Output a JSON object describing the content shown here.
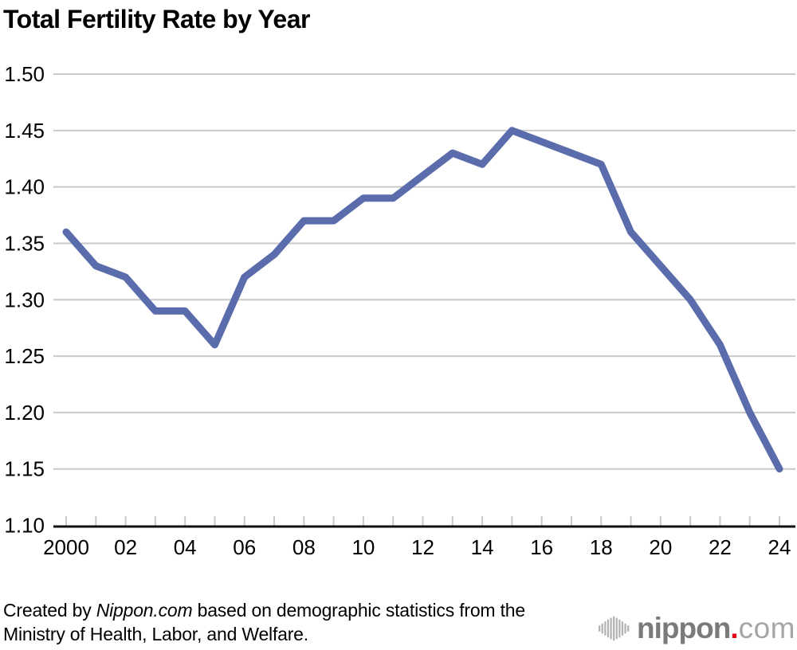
{
  "title": "Total Fertility Rate by Year",
  "chart_data": {
    "type": "line",
    "title": "Total Fertility Rate by Year",
    "xlabel": "",
    "ylabel": "",
    "ylim": [
      1.1,
      1.5
    ],
    "grid": true,
    "legend": "none",
    "line_color": "#5a6cab",
    "grid_color": "#c9c9c9",
    "axis_color": "#111111",
    "years": [
      2000,
      2001,
      2002,
      2003,
      2004,
      2005,
      2006,
      2007,
      2008,
      2009,
      2010,
      2011,
      2012,
      2013,
      2014,
      2015,
      2016,
      2017,
      2018,
      2019,
      2020,
      2021,
      2022,
      2023,
      2024
    ],
    "values": [
      1.36,
      1.33,
      1.32,
      1.29,
      1.29,
      1.26,
      1.32,
      1.34,
      1.37,
      1.37,
      1.39,
      1.39,
      1.41,
      1.43,
      1.42,
      1.45,
      1.44,
      1.43,
      1.42,
      1.36,
      1.33,
      1.3,
      1.26,
      1.2,
      1.15
    ],
    "yticks": [
      {
        "label": "1.50",
        "value": 1.5
      },
      {
        "label": "1.45",
        "value": 1.45
      },
      {
        "label": "1.40",
        "value": 1.4
      },
      {
        "label": "1.35",
        "value": 1.35
      },
      {
        "label": "1.30",
        "value": 1.3
      },
      {
        "label": "1.25",
        "value": 1.25
      },
      {
        "label": "1.20",
        "value": 1.2
      },
      {
        "label": "1.15",
        "value": 1.15
      },
      {
        "label": "1.10",
        "value": 1.1
      }
    ],
    "xticks": [
      {
        "label": "2000",
        "year": 2000
      },
      {
        "label": "02",
        "year": 2002
      },
      {
        "label": "04",
        "year": 2004
      },
      {
        "label": "06",
        "year": 2006
      },
      {
        "label": "08",
        "year": 2008
      },
      {
        "label": "10",
        "year": 2010
      },
      {
        "label": "12",
        "year": 2012
      },
      {
        "label": "14",
        "year": 2014
      },
      {
        "label": "16",
        "year": 2016
      },
      {
        "label": "18",
        "year": 2018
      },
      {
        "label": "20",
        "year": 2020
      },
      {
        "label": "22",
        "year": 2022
      },
      {
        "label": "24",
        "year": 2024
      }
    ]
  },
  "footer": {
    "credit_prefix": "Created by ",
    "credit_source": "Nippon.com",
    "credit_suffix": " based on demographic statistics from the",
    "credit_line2": "Ministry of Health, Labor, and Welfare.",
    "logo": {
      "icon": "soundwave-bars-icon",
      "text_bold": "nippon",
      "dot": ".",
      "text_light": "com",
      "dot_color": "#e60012"
    }
  }
}
